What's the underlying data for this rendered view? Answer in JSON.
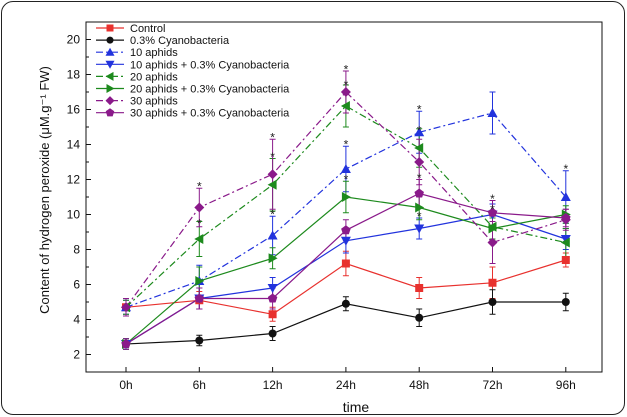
{
  "chart_data": {
    "type": "line",
    "xlabel": "time",
    "ylabel": "Content of hydrogen peroxide (μM.g⁻¹ FW)",
    "ylim": [
      1,
      21
    ],
    "yticks": [
      2,
      4,
      6,
      8,
      10,
      12,
      14,
      16,
      18,
      20
    ],
    "categories": [
      "0h",
      "6h",
      "12h",
      "24h",
      "48h",
      "72h",
      "96h"
    ],
    "legend_position": "top-left",
    "series": [
      {
        "name": "Control",
        "color": "#e8312e",
        "marker": "square",
        "dash": "solid",
        "values": [
          4.7,
          5.1,
          4.3,
          7.2,
          5.8,
          6.1,
          7.4
        ],
        "err": [
          0.5,
          0.5,
          0.4,
          0.7,
          0.6,
          0.9,
          0.4
        ]
      },
      {
        "name": "0.3% Cyanobacteria",
        "color": "#111111",
        "marker": "circle",
        "dash": "solid",
        "values": [
          2.6,
          2.8,
          3.2,
          4.9,
          4.1,
          5.0,
          5.0
        ],
        "err": [
          0.3,
          0.3,
          0.4,
          0.4,
          0.5,
          0.7,
          0.5
        ]
      },
      {
        "name": "10 aphids",
        "color": "#2233dd",
        "marker": "triangle-up",
        "dash": "dashdot",
        "values": [
          4.7,
          6.2,
          8.8,
          12.6,
          14.7,
          15.8,
          11.0
        ],
        "err": [
          0.4,
          0.9,
          1.1,
          1.3,
          1.2,
          1.2,
          1.5
        ]
      },
      {
        "name": "10 aphids + 0.3% Cyanobacteria",
        "color": "#2233dd",
        "marker": "triangle-down",
        "dash": "solid",
        "values": [
          2.6,
          5.2,
          5.8,
          8.5,
          9.2,
          10.0,
          8.6
        ],
        "err": [
          0.3,
          0.6,
          0.6,
          0.7,
          0.6,
          0.6,
          0.6
        ]
      },
      {
        "name": "20 aphids",
        "color": "#1d8a1d",
        "marker": "triangle-left",
        "dash": "dashdot",
        "values": [
          4.7,
          8.6,
          11.7,
          16.2,
          13.8,
          9.3,
          8.4
        ],
        "err": [
          0.4,
          1.0,
          1.5,
          1.2,
          1.1,
          0.8,
          0.8
        ]
      },
      {
        "name": "20 aphids + 0.3% Cyanobacteria",
        "color": "#1d8a1d",
        "marker": "triangle-right",
        "dash": "solid",
        "values": [
          2.6,
          6.2,
          7.5,
          11.0,
          10.4,
          9.2,
          10.0
        ],
        "err": [
          0.3,
          0.8,
          0.6,
          0.9,
          0.7,
          0.6,
          0.5
        ]
      },
      {
        "name": "30 aphids",
        "color": "#8a1a8a",
        "marker": "diamond",
        "dash": "dashdot",
        "values": [
          4.7,
          10.4,
          12.3,
          17.0,
          13.0,
          8.4,
          9.7
        ],
        "err": [
          0.5,
          1.1,
          2.0,
          1.2,
          1.3,
          1.2,
          0.6
        ]
      },
      {
        "name": "30 aphids + 0.3% Cyanobacteria",
        "color": "#8a1a8a",
        "marker": "pentagon",
        "dash": "solid",
        "values": [
          2.6,
          5.2,
          5.2,
          9.1,
          11.2,
          10.1,
          9.8
        ],
        "err": [
          0.3,
          0.6,
          0.6,
          0.6,
          0.8,
          0.7,
          0.5
        ]
      }
    ],
    "annotations": [
      {
        "text": "*",
        "x": "6h",
        "y": 11.6
      },
      {
        "text": "*",
        "x": "6h",
        "y": 9.5
      },
      {
        "text": "*",
        "x": "12h",
        "y": 14.4
      },
      {
        "text": "*",
        "x": "12h",
        "y": 13.3
      },
      {
        "text": "*",
        "x": "12h",
        "y": 10.0
      },
      {
        "text": "*",
        "x": "24h",
        "y": 18.3
      },
      {
        "text": "*",
        "x": "24h",
        "y": 17.4
      },
      {
        "text": "*",
        "x": "24h",
        "y": 14.0
      },
      {
        "text": "*",
        "x": "24h",
        "y": 12.0
      },
      {
        "text": "*",
        "x": "48h",
        "y": 16.0
      },
      {
        "text": "*",
        "x": "48h",
        "y": 14.8
      },
      {
        "text": "*",
        "x": "48h",
        "y": 12.1
      },
      {
        "text": "*",
        "x": "48h",
        "y": 9.9
      },
      {
        "text": "*",
        "x": "72h",
        "y": 10.9
      },
      {
        "text": "*",
        "x": "72h",
        "y": 10.3
      },
      {
        "text": "*",
        "x": "96h",
        "y": 12.6
      }
    ]
  }
}
